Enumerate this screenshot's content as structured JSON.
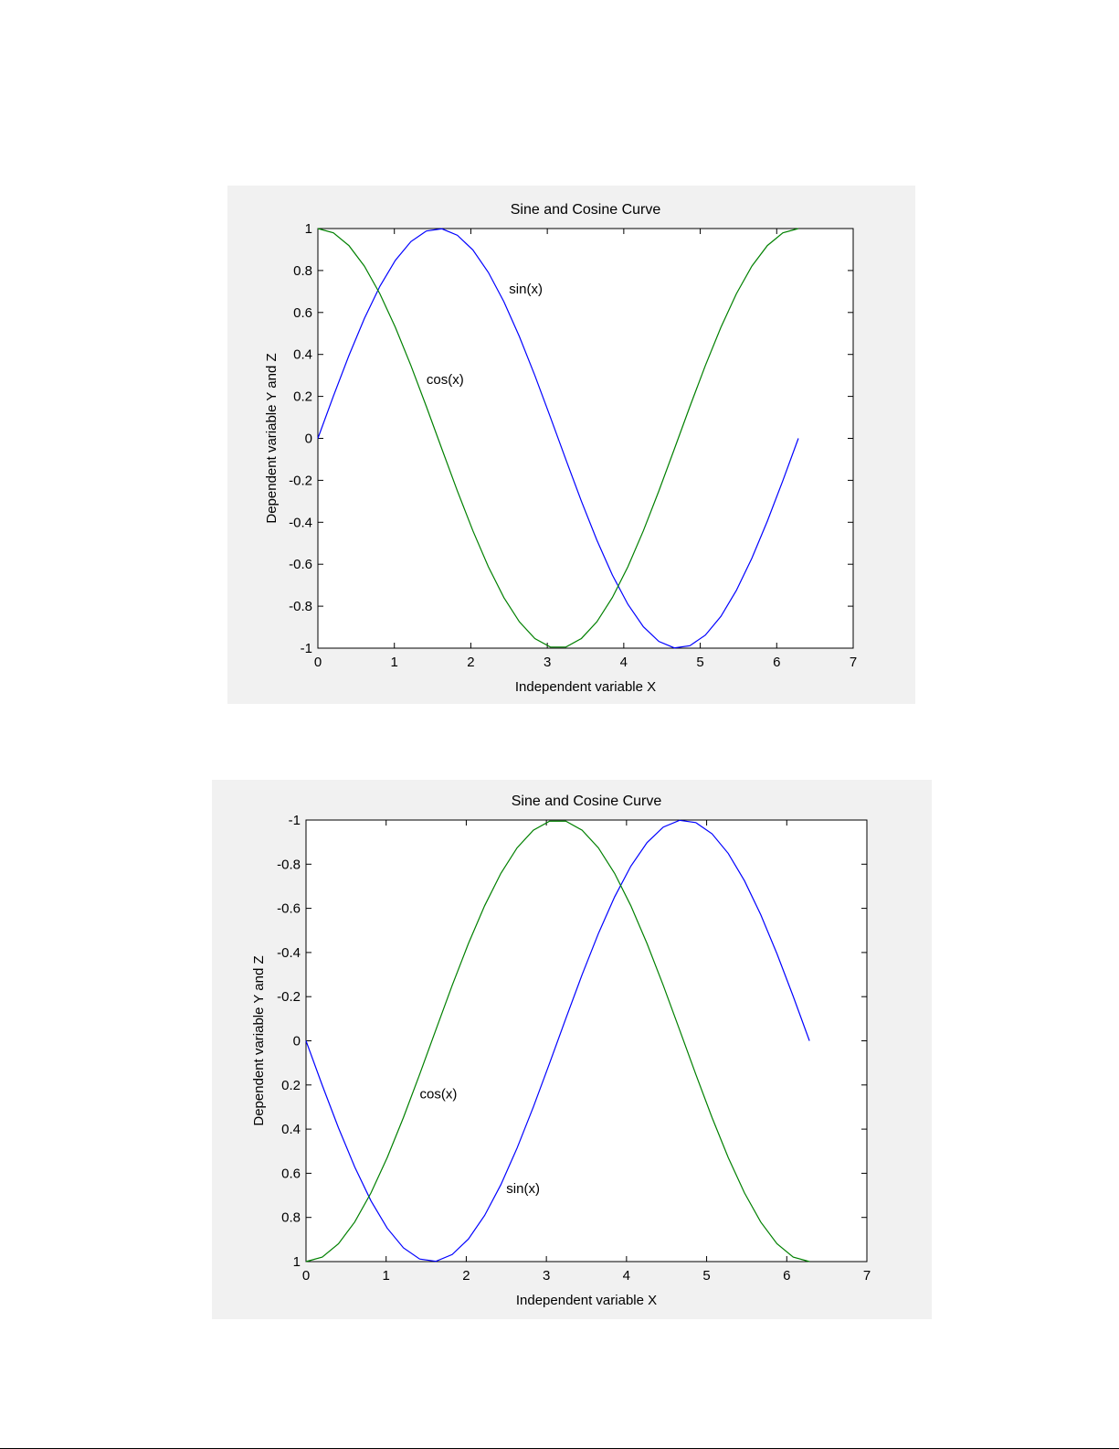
{
  "chart_data": [
    {
      "type": "line",
      "title": "Sine and Cosine Curve",
      "xlabel": "Independent variable X",
      "ylabel": "Dependent variable Y and Z",
      "xlim": [
        0,
        7
      ],
      "ylim": [
        -1,
        1
      ],
      "y_reversed": false,
      "xticks": [
        "0",
        "1",
        "2",
        "3",
        "4",
        "5",
        "6",
        "7"
      ],
      "yticks": [
        "-1",
        "-0.8",
        "-0.6",
        "-0.4",
        "-0.2",
        "0",
        "0.2",
        "0.4",
        "0.6",
        "0.8",
        "1"
      ],
      "grid": false,
      "series": [
        {
          "name": "sin(x)",
          "color": "#0000ff",
          "function": "sin",
          "x_range": [
            0,
            6.2832
          ],
          "samples": 32
        },
        {
          "name": "cos(x)",
          "color": "#008000",
          "function": "cos",
          "x_range": [
            0,
            6.2832
          ],
          "samples": 32
        }
      ],
      "annotations": [
        {
          "text": "sin(x)",
          "x": 2.5,
          "y": 0.69
        },
        {
          "text": "cos(x)",
          "x": 1.42,
          "y": 0.26
        }
      ]
    },
    {
      "type": "line",
      "title": "Sine and Cosine Curve",
      "xlabel": "Independent variable X",
      "ylabel": "Dependent variable Y and Z",
      "xlim": [
        0,
        7
      ],
      "ylim": [
        -1,
        1
      ],
      "y_reversed": true,
      "xticks": [
        "0",
        "1",
        "2",
        "3",
        "4",
        "5",
        "6",
        "7"
      ],
      "yticks": [
        "-1",
        "-0.8",
        "-0.6",
        "-0.4",
        "-0.2",
        "0",
        "0.2",
        "0.4",
        "0.6",
        "0.8",
        "1"
      ],
      "grid": false,
      "series": [
        {
          "name": "sin(x)",
          "color": "#0000ff",
          "function": "sin",
          "x_range": [
            0,
            6.2832
          ],
          "samples": 32
        },
        {
          "name": "cos(x)",
          "color": "#008000",
          "function": "cos",
          "x_range": [
            0,
            6.2832
          ],
          "samples": 32
        }
      ],
      "annotations": [
        {
          "text": "cos(x)",
          "x": 1.42,
          "y": 0.26
        },
        {
          "text": "sin(x)",
          "x": 2.5,
          "y": 0.69
        }
      ]
    }
  ]
}
